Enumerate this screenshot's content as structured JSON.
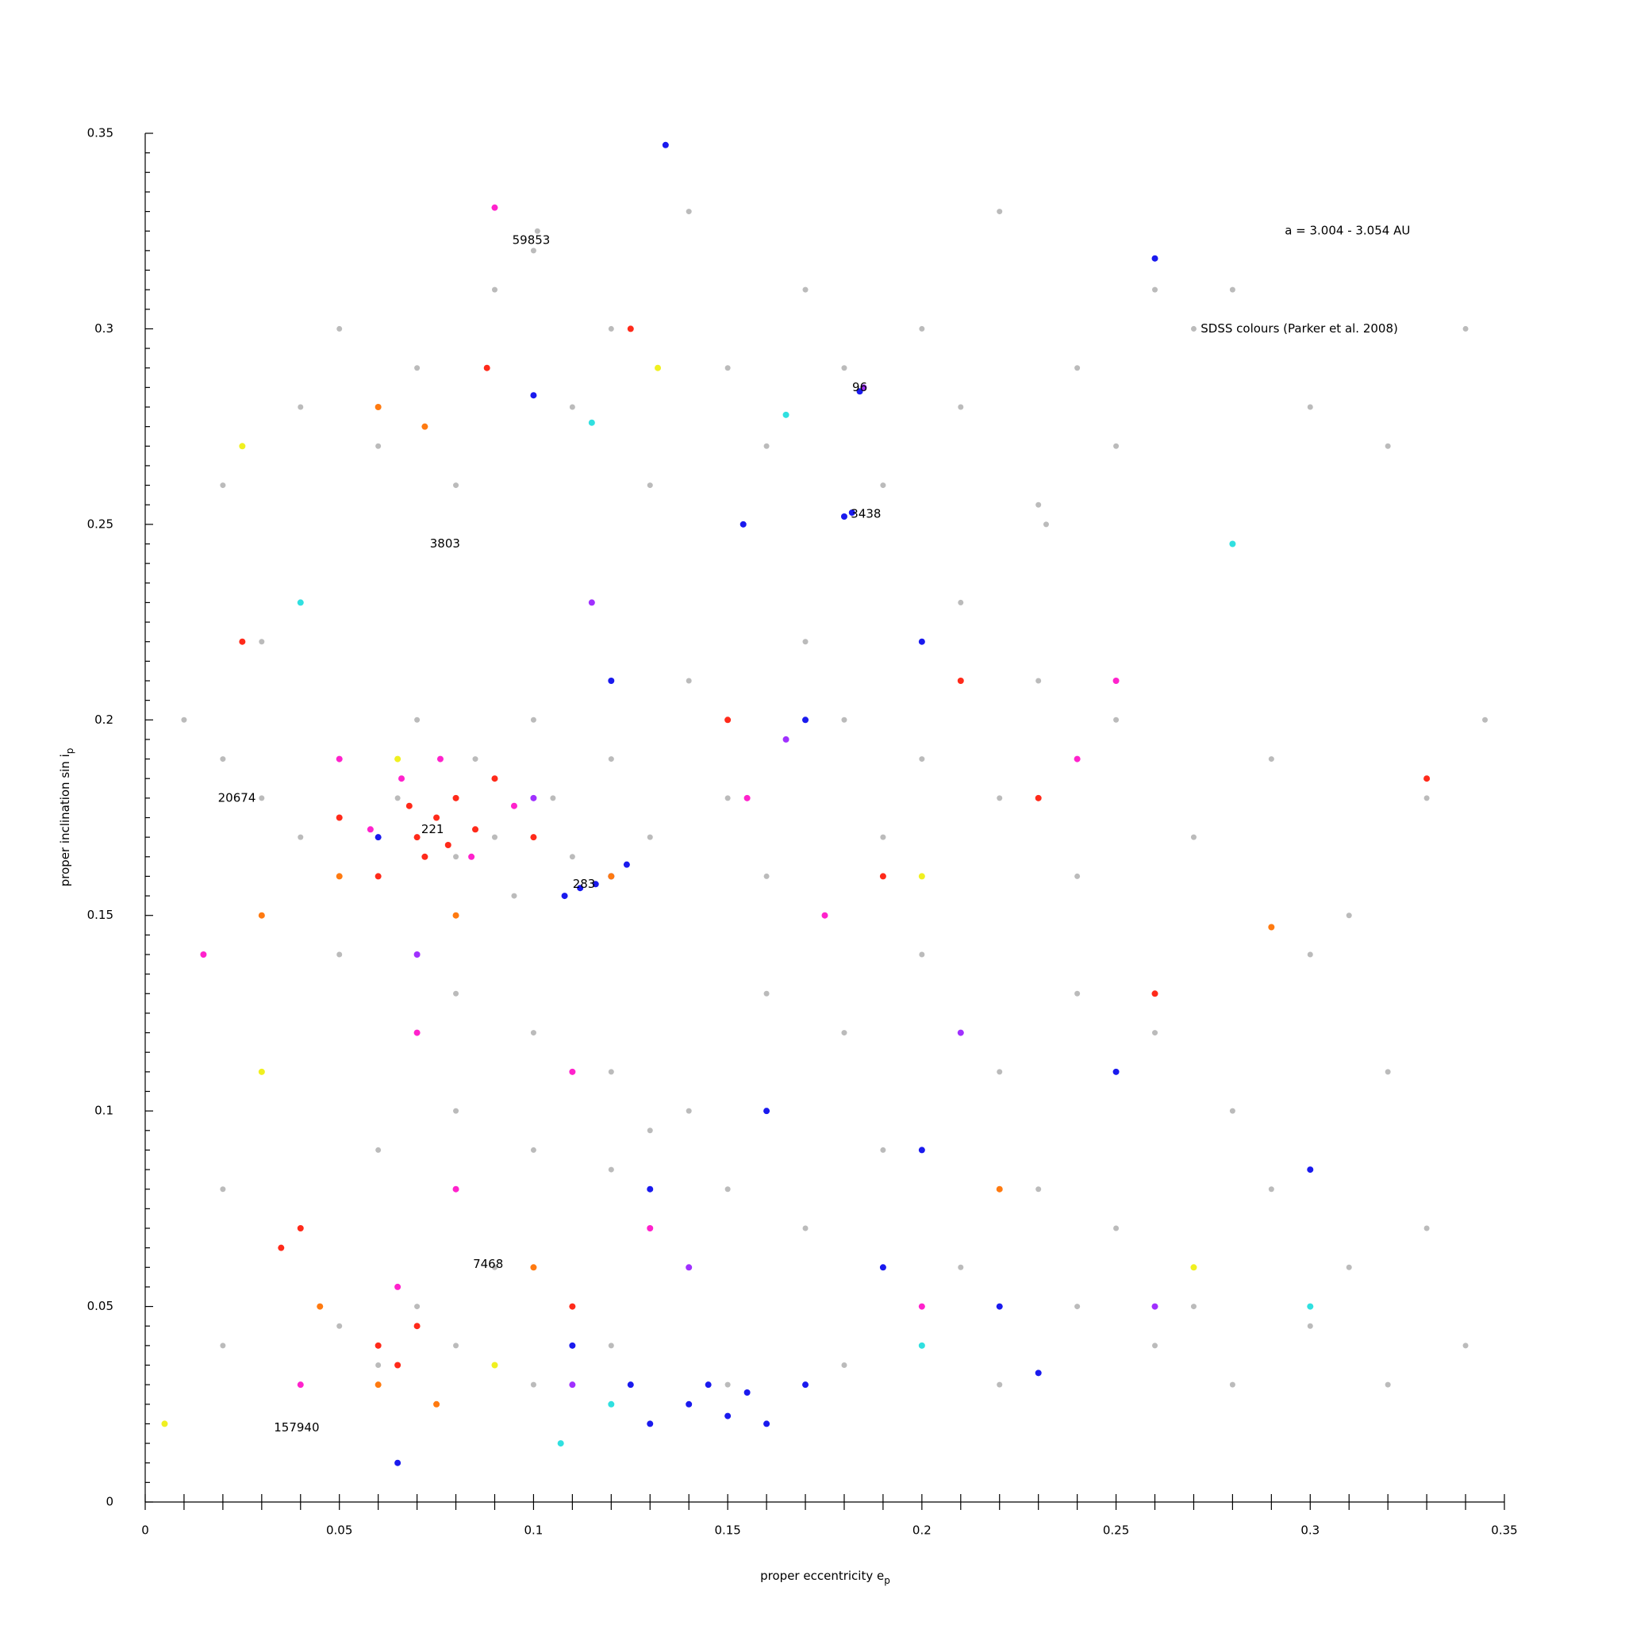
{
  "chart_data": {
    "type": "scatter",
    "x_label": "proper eccentricity e",
    "x_label_sub": "p",
    "y_label": "proper inclination sin i",
    "y_label_sub": "p",
    "xlim": [
      0,
      0.35
    ],
    "ylim": [
      0,
      0.35
    ],
    "xticks": [
      0,
      0.05,
      0.1,
      0.15,
      0.2,
      0.25,
      0.3,
      0.35
    ],
    "yticks": [
      0,
      0.05,
      0.1,
      0.15,
      0.2,
      0.25,
      0.3,
      0.35
    ],
    "xminorticks": [
      0.01,
      0.02,
      0.03,
      0.04,
      0.06,
      0.07,
      0.08,
      0.09,
      0.11,
      0.12,
      0.13,
      0.14,
      0.16,
      0.17,
      0.18,
      0.19,
      0.21,
      0.22,
      0.23,
      0.24,
      0.26,
      0.27,
      0.28,
      0.29,
      0.31,
      0.32,
      0.33,
      0.34
    ],
    "yminorticks": [
      0.005,
      0.01,
      0.015,
      0.02,
      0.025,
      0.03,
      0.035,
      0.04,
      0.045,
      0.055,
      0.06,
      0.065,
      0.07,
      0.075,
      0.08,
      0.085,
      0.09,
      0.095,
      0.105,
      0.11,
      0.115,
      0.12,
      0.125,
      0.13,
      0.135,
      0.14,
      0.145,
      0.155,
      0.16,
      0.165,
      0.17,
      0.175,
      0.18,
      0.185,
      0.19,
      0.195,
      0.205,
      0.21,
      0.215,
      0.22,
      0.225,
      0.23,
      0.235,
      0.24,
      0.245,
      0.255,
      0.26,
      0.265,
      0.27,
      0.275,
      0.28,
      0.285,
      0.29,
      0.295,
      0.305,
      0.31,
      0.315,
      0.32,
      0.325,
      0.33,
      0.335,
      0.34,
      0.345
    ],
    "annotations": [
      {
        "text": "a = 3.004 - 3.054 AU",
        "x": 0.3096,
        "y": 0.325
      },
      {
        "text": "SDSS colours (Parker et al. 2008)",
        "x": 0.2972,
        "y": 0.3
      },
      {
        "text": "59853",
        "x": 0.0994,
        "y": 0.3226
      },
      {
        "text": "96",
        "x": 0.184,
        "y": 0.285
      },
      {
        "text": "3438",
        "x": 0.1856,
        "y": 0.2526
      },
      {
        "text": "3803",
        "x": 0.0772,
        "y": 0.245
      },
      {
        "text": "20674",
        "x": 0.0236,
        "y": 0.18
      },
      {
        "text": "221",
        "x": 0.074,
        "y": 0.172
      },
      {
        "text": "283",
        "x": 0.113,
        "y": 0.158
      },
      {
        "text": "7468",
        "x": 0.0883,
        "y": 0.0608
      },
      {
        "text": "157940",
        "x": 0.039,
        "y": 0.019
      }
    ],
    "series": [
      {
        "color": "#bbbbbb",
        "x": [
          0.02,
          0.03,
          0.04,
          0.05,
          0.06,
          0.07,
          0.08,
          0.09,
          0.1,
          0.101,
          0.11,
          0.12,
          0.13,
          0.14,
          0.15,
          0.16,
          0.17,
          0.18,
          0.185,
          0.19,
          0.2,
          0.21,
          0.22,
          0.23,
          0.232,
          0.24,
          0.25,
          0.26,
          0.27,
          0.28,
          0.3,
          0.32,
          0.34,
          0.01,
          0.02,
          0.03,
          0.04,
          0.05,
          0.06,
          0.065,
          0.07,
          0.075,
          0.08,
          0.085,
          0.09,
          0.095,
          0.1,
          0.105,
          0.11,
          0.12,
          0.13,
          0.14,
          0.15,
          0.16,
          0.17,
          0.18,
          0.19,
          0.2,
          0.21,
          0.22,
          0.23,
          0.24,
          0.25,
          0.27,
          0.29,
          0.31,
          0.33,
          0.345,
          0.05,
          0.08,
          0.1,
          0.12,
          0.14,
          0.16,
          0.18,
          0.2,
          0.22,
          0.24,
          0.26,
          0.28,
          0.3,
          0.32,
          0.02,
          0.04,
          0.06,
          0.08,
          0.1,
          0.12,
          0.13,
          0.15,
          0.17,
          0.19,
          0.21,
          0.23,
          0.25,
          0.27,
          0.29,
          0.31,
          0.33,
          0.02,
          0.04,
          0.05,
          0.06,
          0.07,
          0.08,
          0.09,
          0.1,
          0.12,
          0.14,
          0.15,
          0.16,
          0.18,
          0.2,
          0.22,
          0.24,
          0.26,
          0.28,
          0.3,
          0.32,
          0.34
        ],
        "y": [
          0.26,
          0.22,
          0.28,
          0.3,
          0.27,
          0.29,
          0.26,
          0.31,
          0.32,
          0.325,
          0.28,
          0.3,
          0.26,
          0.33,
          0.29,
          0.27,
          0.31,
          0.29,
          0.285,
          0.26,
          0.3,
          0.28,
          0.33,
          0.255,
          0.25,
          0.29,
          0.27,
          0.31,
          0.3,
          0.31,
          0.28,
          0.27,
          0.3,
          0.2,
          0.19,
          0.18,
          0.17,
          0.19,
          0.16,
          0.18,
          0.2,
          0.175,
          0.165,
          0.19,
          0.17,
          0.155,
          0.2,
          0.18,
          0.165,
          0.19,
          0.17,
          0.21,
          0.18,
          0.16,
          0.22,
          0.2,
          0.17,
          0.19,
          0.23,
          0.18,
          0.21,
          0.16,
          0.2,
          0.17,
          0.19,
          0.15,
          0.18,
          0.2,
          0.14,
          0.13,
          0.12,
          0.11,
          0.1,
          0.13,
          0.12,
          0.14,
          0.11,
          0.13,
          0.12,
          0.1,
          0.14,
          0.11,
          0.08,
          0.07,
          0.09,
          0.1,
          0.09,
          0.085,
          0.095,
          0.08,
          0.07,
          0.09,
          0.06,
          0.08,
          0.07,
          0.05,
          0.08,
          0.06,
          0.07,
          0.04,
          0.03,
          0.045,
          0.035,
          0.05,
          0.04,
          0.06,
          0.03,
          0.04,
          0.025,
          0.03,
          0.02,
          0.035,
          0.04,
          0.03,
          0.05,
          0.04,
          0.03,
          0.045,
          0.03,
          0.04
        ]
      },
      {
        "color": "#1a1aee",
        "x": [
          0.108,
          0.112,
          0.116,
          0.12,
          0.124,
          0.18,
          0.182,
          0.184,
          0.13,
          0.14,
          0.145,
          0.15,
          0.155,
          0.16,
          0.17,
          0.13,
          0.16,
          0.19,
          0.2,
          0.22,
          0.23,
          0.1,
          0.154,
          0.12,
          0.17,
          0.26,
          0.134,
          0.06,
          0.3,
          0.2,
          0.25,
          0.11,
          0.125,
          0.065
        ],
        "y": [
          0.155,
          0.157,
          0.158,
          0.16,
          0.163,
          0.252,
          0.253,
          0.284,
          0.02,
          0.025,
          0.03,
          0.022,
          0.028,
          0.02,
          0.03,
          0.08,
          0.1,
          0.06,
          0.09,
          0.05,
          0.033,
          0.283,
          0.25,
          0.21,
          0.2,
          0.318,
          0.347,
          0.17,
          0.085,
          0.22,
          0.11,
          0.04,
          0.03,
          0.01
        ]
      },
      {
        "color": "#ff2a1a",
        "x": [
          0.07,
          0.075,
          0.08,
          0.072,
          0.085,
          0.068,
          0.078,
          0.09,
          0.06,
          0.05,
          0.04,
          0.035,
          0.06,
          0.07,
          0.065,
          0.088,
          0.125,
          0.1,
          0.21,
          0.23,
          0.26,
          0.33,
          0.025,
          0.15,
          0.19,
          0.11
        ],
        "y": [
          0.17,
          0.175,
          0.18,
          0.165,
          0.172,
          0.178,
          0.168,
          0.185,
          0.16,
          0.175,
          0.07,
          0.065,
          0.04,
          0.045,
          0.035,
          0.29,
          0.3,
          0.17,
          0.21,
          0.18,
          0.13,
          0.185,
          0.22,
          0.2,
          0.16,
          0.05
        ]
      },
      {
        "color": "#ff22cc",
        "x": [
          0.09,
          0.076,
          0.084,
          0.066,
          0.058,
          0.095,
          0.05,
          0.015,
          0.065,
          0.08,
          0.11,
          0.25,
          0.175,
          0.2,
          0.13,
          0.04,
          0.155,
          0.24,
          0.07
        ],
        "y": [
          0.331,
          0.19,
          0.165,
          0.185,
          0.172,
          0.178,
          0.19,
          0.14,
          0.055,
          0.08,
          0.11,
          0.21,
          0.15,
          0.05,
          0.07,
          0.03,
          0.18,
          0.19,
          0.12
        ]
      },
      {
        "color": "#ff7a10",
        "x": [
          0.06,
          0.072,
          0.03,
          0.05,
          0.08,
          0.06,
          0.075,
          0.1,
          0.12,
          0.29,
          0.22,
          0.045
        ],
        "y": [
          0.28,
          0.275,
          0.15,
          0.16,
          0.15,
          0.03,
          0.025,
          0.06,
          0.16,
          0.147,
          0.08,
          0.05
        ]
      },
      {
        "color": "#a030ff",
        "x": [
          0.115,
          0.165,
          0.185,
          0.1,
          0.07,
          0.14,
          0.21,
          0.11,
          0.26
        ],
        "y": [
          0.23,
          0.195,
          0.285,
          0.18,
          0.14,
          0.06,
          0.12,
          0.03,
          0.05
        ]
      },
      {
        "color": "#30e0e0",
        "x": [
          0.115,
          0.165,
          0.04,
          0.2,
          0.12,
          0.107,
          0.28,
          0.3
        ],
        "y": [
          0.276,
          0.278,
          0.23,
          0.04,
          0.025,
          0.015,
          0.245,
          0.05
        ]
      },
      {
        "color": "#f0f020",
        "x": [
          0.025,
          0.132,
          0.065,
          0.2,
          0.03,
          0.09,
          0.27,
          0.005
        ],
        "y": [
          0.27,
          0.29,
          0.19,
          0.16,
          0.11,
          0.035,
          0.06,
          0.02
        ]
      }
    ]
  }
}
